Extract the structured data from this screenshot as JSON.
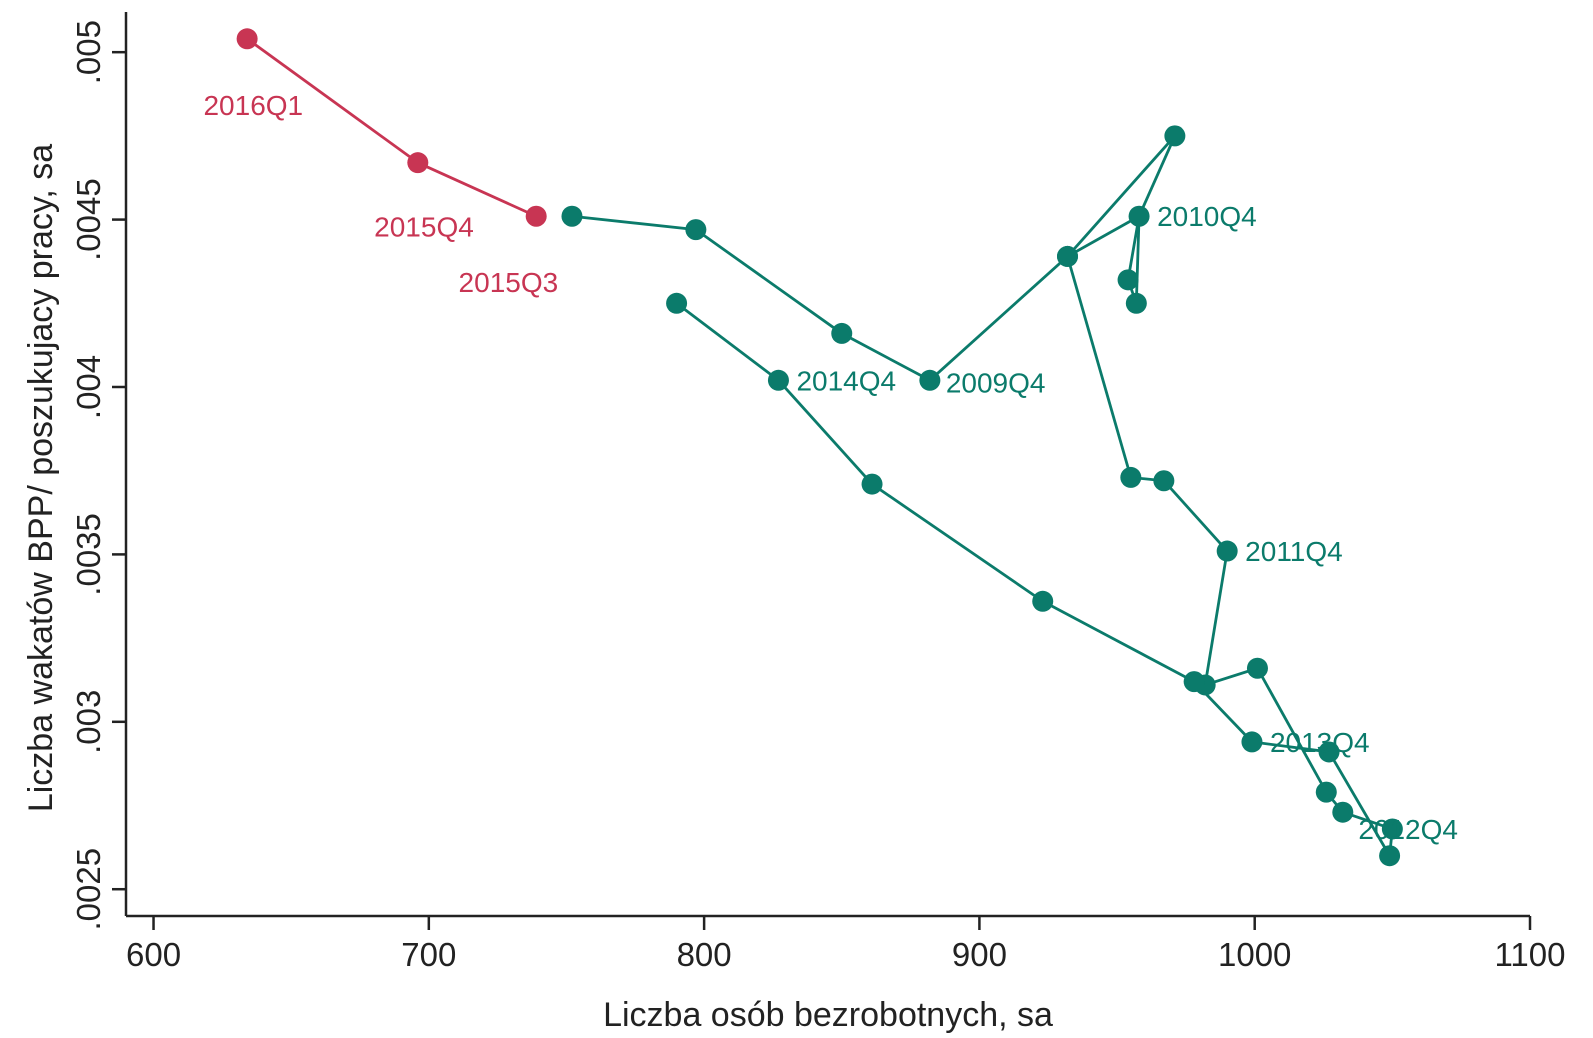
{
  "chart_data": {
    "type": "scatter",
    "xlabel": "Liczba osób bezrobotnych, sa",
    "ylabel": "Liczba wakatów BPP/ poszukujacy pracy, sa",
    "xlim": [
      590,
      1100
    ],
    "ylim": [
      0.00242,
      0.00512
    ],
    "x_ticks": [
      600,
      700,
      800,
      900,
      1000,
      1100
    ],
    "x_tick_labels": [
      "600",
      "700",
      "800",
      "900",
      "1000",
      "1100"
    ],
    "y_ticks": [
      0.0025,
      0.003,
      0.0035,
      0.004,
      0.0045,
      0.005
    ],
    "y_tick_labels": [
      ".0025",
      ".003",
      ".0035",
      ".004",
      ".0045",
      ".005"
    ],
    "grid": false,
    "legend": "none",
    "series": [
      {
        "color": "#0b7b6b",
        "points": [
          {
            "x": 882,
            "y": 0.00402,
            "label": "2009Q4"
          },
          {
            "x": 932,
            "y": 0.00439
          },
          {
            "x": 971,
            "y": 0.00475
          },
          {
            "x": 958,
            "y": 0.00451,
            "label": "2010Q4"
          },
          {
            "x": 932,
            "y": 0.00439
          },
          {
            "x": 955,
            "y": 0.00373
          },
          {
            "x": 967,
            "y": 0.00372
          },
          {
            "x": 990,
            "y": 0.00351,
            "label": "2011Q4"
          },
          {
            "x": 982,
            "y": 0.00311
          },
          {
            "x": 1001,
            "y": 0.00316
          },
          {
            "x": 1026,
            "y": 0.00279
          },
          {
            "x": 1032,
            "y": 0.00273
          },
          {
            "x": 1050,
            "y": 0.00268,
            "label": "2012Q4"
          },
          {
            "x": 1049,
            "y": 0.0026
          },
          {
            "x": 1027,
            "y": 0.00291
          },
          {
            "x": 999,
            "y": 0.00294,
            "label": "2013Q4"
          },
          {
            "x": 978,
            "y": 0.00312
          },
          {
            "x": 923,
            "y": 0.00336
          },
          {
            "x": 861,
            "y": 0.00371
          },
          {
            "x": 827,
            "y": 0.00402,
            "label": "2014Q4"
          },
          {
            "x": 790,
            "y": 0.00425
          },
          {
            "x": 957,
            "y": 0.00425
          },
          {
            "x": 954,
            "y": 0.00432
          },
          {
            "x": 850,
            "y": 0.00416
          },
          {
            "x": 797,
            "y": 0.00447
          },
          {
            "x": 752,
            "y": 0.00451
          }
        ],
        "line_segments": [
          [
            0,
            1
          ],
          [
            1,
            2
          ],
          [
            2,
            3
          ],
          [
            3,
            22
          ],
          [
            22,
            21
          ],
          [
            21,
            3
          ],
          [
            3,
            1
          ],
          [
            1,
            4
          ],
          [
            4,
            5
          ],
          [
            5,
            6
          ],
          [
            6,
            7
          ],
          [
            7,
            8
          ],
          [
            8,
            9
          ],
          [
            9,
            10
          ],
          [
            10,
            11
          ],
          [
            11,
            12
          ],
          [
            12,
            13
          ],
          [
            13,
            14
          ],
          [
            14,
            15
          ],
          [
            15,
            16
          ],
          [
            16,
            17
          ],
          [
            17,
            18
          ],
          [
            18,
            19
          ],
          [
            19,
            20
          ],
          [
            0,
            23
          ],
          [
            23,
            24
          ],
          [
            24,
            25
          ]
        ]
      },
      {
        "color": "#c83553",
        "points": [
          {
            "x": 739,
            "y": 0.00451,
            "label": "2015Q3"
          },
          {
            "x": 696,
            "y": 0.00467,
            "label": "2015Q4"
          },
          {
            "x": 634,
            "y": 0.00504,
            "label": "2016Q1"
          }
        ],
        "line_segments": [
          [
            0,
            1
          ],
          [
            1,
            2
          ]
        ]
      }
    ]
  }
}
